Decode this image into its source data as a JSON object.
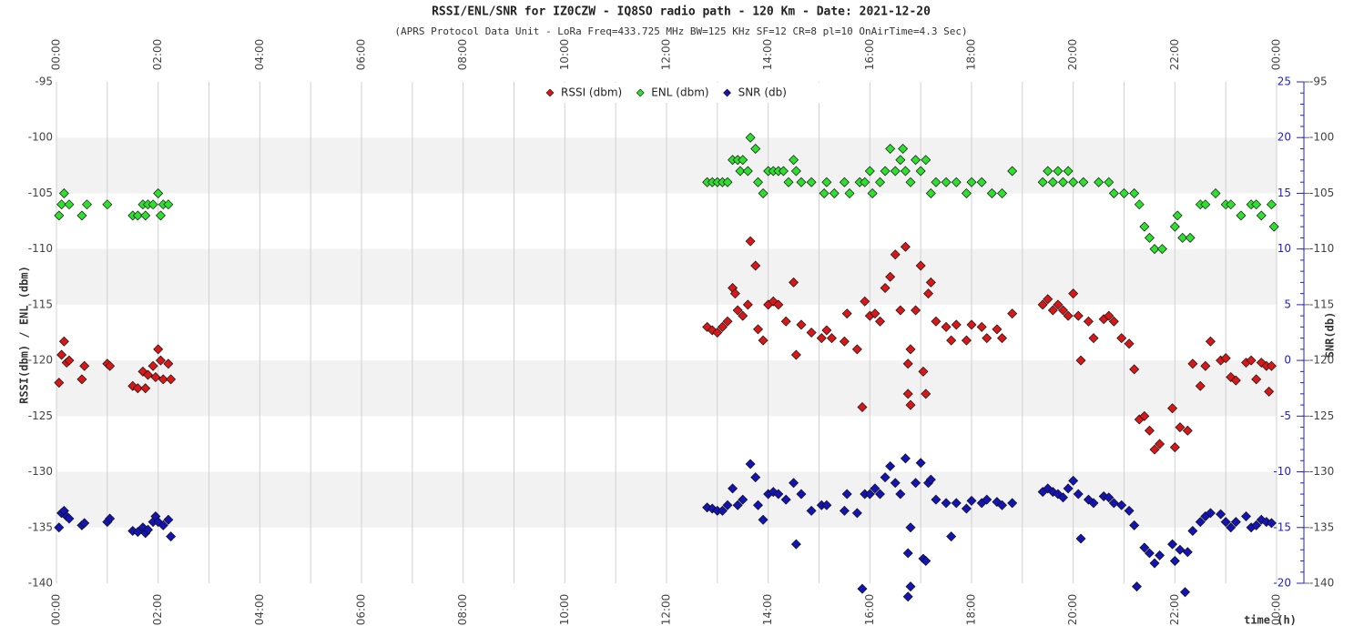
{
  "chart_data": {
    "type": "scatter",
    "title": "RSSI/ENL/SNR for IZ0CZW - IQ8SO radio path - 120 Km - Date: 2021-12-20",
    "subtitle": "(APRS Protocol Data Unit - LoRa Freq=433.725 MHz BW=125 KHz SF=12 CR=8 pl=10 OnAirTime=4.3 Sec)",
    "y_label": "RSSI(dbm) / ENL (dbm)",
    "y2_label": "SNR(db)",
    "x_label": "time (h)",
    "xlim": [
      0,
      24
    ],
    "xticks": [
      {
        "value": 0,
        "label": "00:00"
      },
      {
        "value": 2,
        "label": "02:00"
      },
      {
        "value": 4,
        "label": "04:00"
      },
      {
        "value": 6,
        "label": "06:00"
      },
      {
        "value": 8,
        "label": "08:00"
      },
      {
        "value": 10,
        "label": "10:00"
      },
      {
        "value": 12,
        "label": "12:00"
      },
      {
        "value": 14,
        "label": "14:00"
      },
      {
        "value": 16,
        "label": "16:00"
      },
      {
        "value": 18,
        "label": "18:00"
      },
      {
        "value": 20,
        "label": "20:00"
      },
      {
        "value": 22,
        "label": "22:00"
      },
      {
        "value": 24,
        "label": "00:00"
      }
    ],
    "ylim": [
      -95,
      -140
    ],
    "yticks": [
      -95,
      -100,
      -105,
      -110,
      -115,
      -120,
      -125,
      -130,
      -135,
      -140
    ],
    "y2lim": [
      25,
      -20
    ],
    "y2ticks": [
      25,
      20,
      15,
      10,
      5,
      0,
      -5,
      -10,
      -15,
      -20
    ],
    "grid": true,
    "legend": "top",
    "series": [
      {
        "name": "RSSI (dbm)",
        "color": "#d81818",
        "x": [
          0.05,
          0.1,
          0.15,
          0.2,
          0.25,
          0.5,
          0.55,
          1.0,
          1.05,
          1.5,
          1.6,
          1.75,
          1.7,
          1.8,
          1.9,
          1.95,
          2.0,
          2.05,
          2.1,
          2.2,
          2.25,
          12.8,
          12.9,
          13.0,
          13.1,
          13.2,
          13.3,
          13.35,
          13.4,
          13.5,
          13.6,
          13.65,
          13.75,
          13.8,
          13.9,
          14.0,
          14.1,
          14.2,
          14.35,
          14.5,
          14.55,
          14.65,
          14.85,
          15.05,
          15.15,
          15.25,
          15.5,
          15.55,
          15.75,
          15.85,
          15.9,
          16.0,
          16.1,
          16.2,
          16.3,
          16.4,
          16.5,
          16.6,
          16.7,
          16.75,
          16.8,
          16.75,
          16.8,
          16.9,
          17.0,
          17.05,
          17.1,
          17.15,
          17.2,
          17.3,
          17.5,
          17.6,
          17.7,
          17.9,
          18.0,
          18.2,
          18.3,
          18.5,
          18.6,
          18.8,
          19.4,
          19.5,
          19.6,
          19.7,
          19.8,
          19.9,
          20.0,
          20.1,
          20.15,
          20.3,
          20.4,
          20.6,
          20.7,
          20.8,
          20.95,
          21.1,
          21.2,
          21.3,
          21.4,
          21.5,
          21.6,
          21.7,
          21.95,
          22.0,
          22.1,
          22.25,
          22.35,
          22.5,
          22.6,
          22.7,
          22.9,
          23.0,
          23.1,
          23.2,
          23.4,
          23.5,
          23.6,
          23.7,
          23.8,
          23.85,
          23.9
        ],
        "values": [
          -122,
          -119.5,
          -118.3,
          -120.2,
          -120,
          -121.7,
          -120.5,
          -120.3,
          -120.5,
          -122.3,
          -122.5,
          -122.5,
          -121,
          -121.3,
          -120.5,
          -121.5,
          -119,
          -120,
          -121.7,
          -120.3,
          -121.7,
          -117,
          -117.3,
          -117.5,
          -117,
          -116.5,
          -113.5,
          -114,
          -115.5,
          -116,
          -115,
          -109.3,
          -111.5,
          -117.2,
          -118.2,
          -115,
          -114.7,
          -115,
          -116.5,
          -113,
          -119.5,
          -116.8,
          -117.5,
          -118,
          -117.3,
          -118,
          -118.3,
          -115.8,
          -119,
          -124.2,
          -114.7,
          -116,
          -115.8,
          -116.5,
          -113.5,
          -112.5,
          -110.5,
          -115.5,
          -109.8,
          -120.3,
          -119,
          -123,
          -124,
          -115.5,
          -111.5,
          -121,
          -123,
          -114,
          -113,
          -116.5,
          -117,
          -118.2,
          -116.8,
          -118.2,
          -116.8,
          -117,
          -118,
          -117.2,
          -118,
          -115.8,
          -115,
          -114.5,
          -115.5,
          -115,
          -115.5,
          -116,
          -114,
          -116,
          -120,
          -116.5,
          -118,
          -116.3,
          -116,
          -116.5,
          -118,
          -118.5,
          -120.8,
          -125.3,
          -125,
          -126.3,
          -128,
          -127.5,
          -124.3,
          -127.8,
          -126,
          -126.3,
          -120.3,
          -122.3,
          -120.5,
          -118.3,
          -120,
          -119.8,
          -121.5,
          -121.8,
          -120.2,
          -120,
          -121.7,
          -120.2,
          -120.5,
          -122.8,
          -120.5
        ]
      },
      {
        "name": "ENL (dbm)",
        "color": "#2ee02e",
        "x": [
          0.05,
          0.1,
          0.15,
          0.25,
          0.5,
          0.6,
          1.0,
          1.5,
          1.6,
          1.7,
          1.75,
          1.8,
          1.9,
          2.0,
          2.05,
          2.1,
          2.2,
          12.8,
          12.9,
          13.0,
          13.1,
          13.2,
          13.3,
          13.4,
          13.45,
          13.5,
          13.6,
          13.65,
          13.75,
          13.8,
          13.9,
          14.0,
          14.1,
          14.2,
          14.3,
          14.4,
          14.5,
          14.55,
          14.65,
          14.85,
          15.1,
          15.15,
          15.3,
          15.5,
          15.6,
          15.8,
          15.9,
          16.0,
          16.05,
          16.2,
          16.3,
          16.4,
          16.5,
          16.6,
          16.65,
          16.7,
          16.8,
          16.9,
          17.0,
          17.1,
          17.2,
          17.3,
          17.5,
          17.7,
          17.9,
          18.0,
          18.2,
          18.4,
          18.6,
          18.8,
          19.4,
          19.5,
          19.6,
          19.7,
          19.8,
          19.9,
          20.0,
          20.2,
          20.5,
          20.7,
          20.8,
          21.0,
          21.2,
          21.3,
          21.4,
          21.5,
          21.6,
          21.75,
          22.0,
          22.05,
          22.15,
          22.3,
          22.5,
          22.6,
          22.8,
          23.0,
          23.1,
          23.3,
          23.5,
          23.6,
          23.7,
          23.9,
          23.95
        ],
        "values": [
          -107,
          -106,
          -105,
          -106,
          -107,
          -106,
          -106,
          -107,
          -107,
          -106,
          -107,
          -106,
          -106,
          -105,
          -107,
          -106,
          -106,
          -104,
          -104,
          -104,
          -104,
          -104,
          -102,
          -102,
          -103,
          -102,
          -103,
          -100,
          -101,
          -104,
          -105,
          -103,
          -103,
          -103,
          -103,
          -104,
          -102,
          -103,
          -104,
          -104,
          -105,
          -104,
          -105,
          -104,
          -105,
          -104,
          -104,
          -103,
          -105,
          -104,
          -103,
          -101,
          -103,
          -102,
          -101,
          -103,
          -104,
          -102,
          -103,
          -102,
          -105,
          -104,
          -104,
          -104,
          -105,
          -104,
          -104,
          -105,
          -105,
          -103,
          -104,
          -103,
          -104,
          -103,
          -104,
          -103,
          -104,
          -104,
          -104,
          -104,
          -105,
          -105,
          -105,
          -106,
          -108,
          -109,
          -110,
          -110,
          -108,
          -107,
          -109,
          -109,
          -106,
          -106,
          -105,
          -106,
          -106,
          -107,
          -106,
          -106,
          -107,
          -106,
          -108
        ]
      },
      {
        "name": "SNR (db)",
        "color": "#1414b4",
        "axis": "y2",
        "x": [
          0.05,
          0.1,
          0.15,
          0.2,
          0.25,
          0.5,
          0.55,
          1.0,
          1.05,
          1.5,
          1.6,
          1.7,
          1.75,
          1.8,
          1.9,
          1.95,
          2.0,
          2.1,
          2.2,
          2.25,
          12.8,
          12.9,
          13.0,
          13.1,
          13.2,
          13.3,
          13.4,
          13.5,
          13.65,
          13.75,
          13.8,
          13.9,
          14.0,
          14.1,
          14.2,
          14.35,
          14.5,
          14.55,
          14.65,
          14.85,
          15.05,
          15.15,
          15.5,
          15.55,
          15.75,
          15.85,
          15.9,
          16.0,
          16.1,
          16.2,
          16.3,
          16.4,
          16.5,
          16.6,
          16.7,
          16.75,
          16.8,
          16.75,
          16.8,
          16.9,
          17.0,
          17.05,
          17.1,
          17.15,
          17.2,
          17.3,
          17.5,
          17.6,
          17.7,
          17.9,
          18.0,
          18.2,
          18.3,
          18.5,
          18.6,
          18.8,
          19.4,
          19.5,
          19.6,
          19.7,
          19.8,
          19.9,
          20.0,
          20.1,
          20.15,
          20.3,
          20.4,
          20.6,
          20.7,
          20.8,
          20.95,
          21.1,
          21.2,
          21.25,
          21.4,
          21.5,
          21.6,
          21.7,
          21.95,
          22.0,
          22.1,
          22.2,
          22.25,
          22.35,
          22.5,
          22.6,
          22.7,
          22.9,
          23.0,
          23.1,
          23.2,
          23.4,
          23.5,
          23.6,
          23.7,
          23.8,
          23.9
        ],
        "values": [
          -15,
          -13.7,
          -13.5,
          -14,
          -14.2,
          -14.8,
          -14.6,
          -14.5,
          -14.2,
          -15.3,
          -15.4,
          -15,
          -15.5,
          -15.2,
          -14.5,
          -14,
          -14.5,
          -14.8,
          -14.3,
          -15.8,
          -13.2,
          -13.3,
          -13.5,
          -13.5,
          -13,
          -11.5,
          -13,
          -12.5,
          -9.3,
          -10.5,
          -13,
          -14.3,
          -12,
          -11.8,
          -12,
          -12.5,
          -11,
          -16.5,
          -12,
          -13.5,
          -13,
          -13,
          -13.5,
          -12,
          -13.7,
          -20.5,
          -12,
          -12,
          -11.5,
          -12,
          -10.5,
          -9.5,
          -11,
          -12,
          -8.8,
          -17.3,
          -15,
          -21.2,
          -20.3,
          -11,
          -9.2,
          -17.8,
          -18,
          -11,
          -10.7,
          -12.5,
          -12.8,
          -15.8,
          -12.8,
          -13.3,
          -12.6,
          -12.8,
          -12.5,
          -12.7,
          -13,
          -12.8,
          -11.8,
          -11.5,
          -11.8,
          -12,
          -12.3,
          -11.5,
          -10.8,
          -12,
          -16,
          -12.5,
          -12.8,
          -12.2,
          -12.3,
          -12.8,
          -13,
          -13.5,
          -14.8,
          -20.3,
          -16.8,
          -17.3,
          -18.2,
          -17.5,
          -16.5,
          -18,
          -17,
          -20.8,
          -17.2,
          -15.3,
          -14.5,
          -14,
          -13.7,
          -13.8,
          -14.5,
          -15,
          -14.5,
          -14,
          -15,
          -14.8,
          -14.3,
          -14.5,
          -14.6
        ]
      }
    ]
  }
}
